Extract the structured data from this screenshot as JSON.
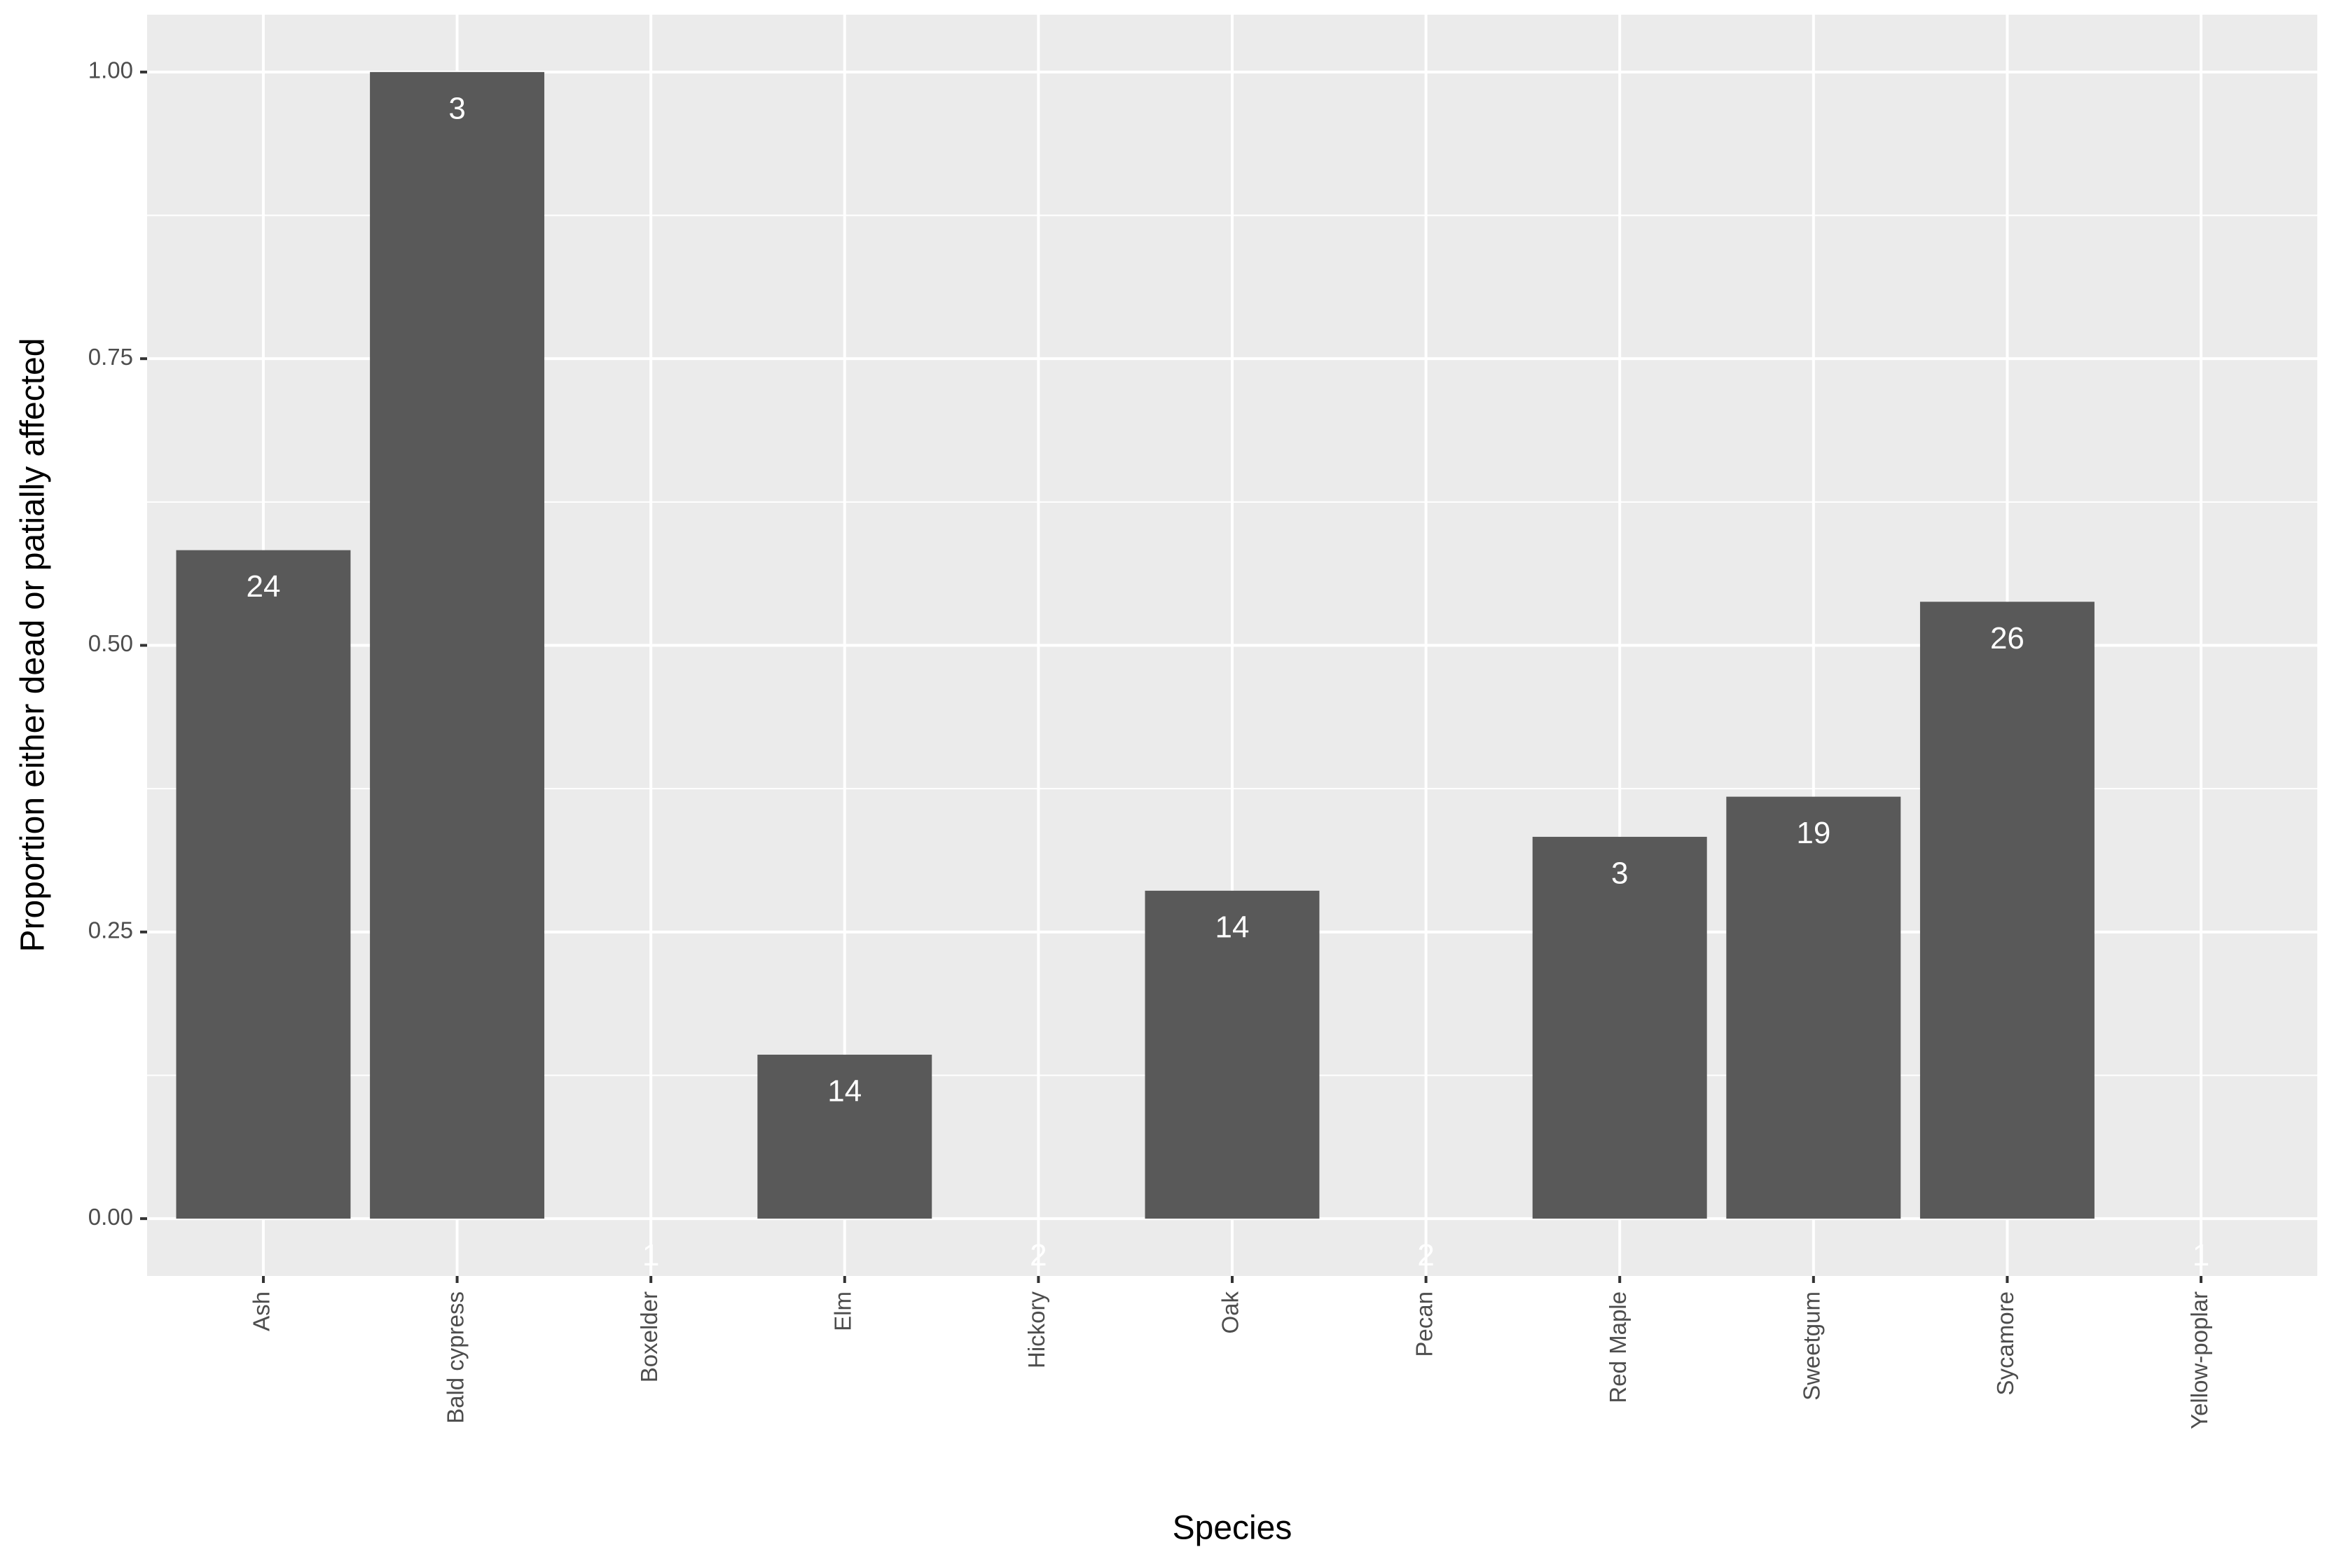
{
  "chart_data": {
    "type": "bar",
    "x_label": "Species",
    "y_label": "Proportion either dead or patially affected",
    "categories": [
      "Ash",
      "Bald cypress",
      "Boxelder",
      "Elm",
      "Hickory",
      "Oak",
      "Pecan",
      "Red Maple",
      "Sweetgum",
      "Sycamore",
      "Yellow-poplar"
    ],
    "values": [
      0.583,
      1.0,
      0,
      0.143,
      0,
      0.286,
      0,
      0.333,
      0.368,
      0.538,
      0
    ],
    "n": [
      24,
      3,
      1,
      14,
      2,
      14,
      2,
      3,
      19,
      26,
      1
    ],
    "color": "#595959",
    "ylim": [
      -0.05,
      1.05
    ],
    "yticks": [
      {
        "value": 0,
        "label": "0.00"
      },
      {
        "value": 0.25,
        "label": "0.25"
      },
      {
        "value": 0.5,
        "label": "0.50"
      },
      {
        "value": 0.75,
        "label": "0.75"
      },
      {
        "value": 1,
        "label": "1.00"
      }
    ],
    "yminor": [
      0.125,
      0.375,
      0.625,
      0.875
    ],
    "grid": true
  }
}
